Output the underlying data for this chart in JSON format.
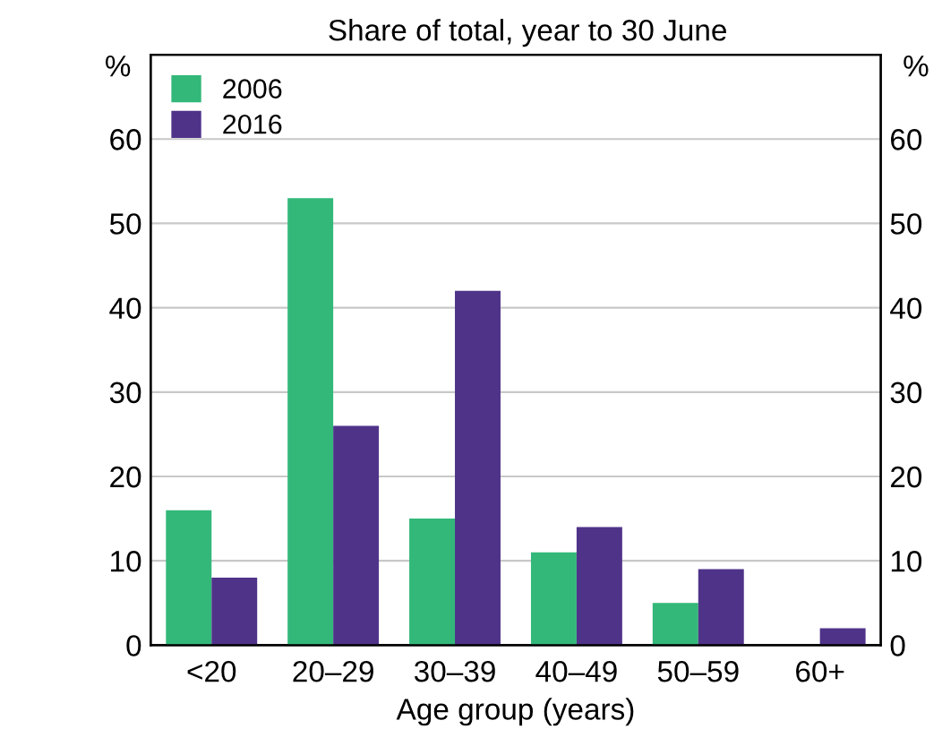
{
  "chart_data": {
    "type": "bar",
    "subtitle": "Share of total, year to 30 June",
    "xlabel": "Age group (years)",
    "ylabel": "%",
    "y2label": "%",
    "categories": [
      "<20",
      "20–29",
      "30–39",
      "40–49",
      "50–59",
      "60+"
    ],
    "series": [
      {
        "name": "2006",
        "color": "#33b87a",
        "values": [
          16,
          53,
          15,
          11,
          5,
          0
        ]
      },
      {
        "name": "2016",
        "color": "#4f3389",
        "values": [
          8,
          26,
          42,
          14,
          9,
          2
        ]
      }
    ],
    "ylim": [
      0,
      70
    ],
    "yticks": [
      0,
      10,
      20,
      30,
      40,
      50,
      60
    ],
    "y2lim": [
      0,
      70
    ],
    "y2ticks": [
      0,
      10,
      20,
      30,
      40,
      50,
      60
    ],
    "grid": "y",
    "legend": "top left"
  }
}
